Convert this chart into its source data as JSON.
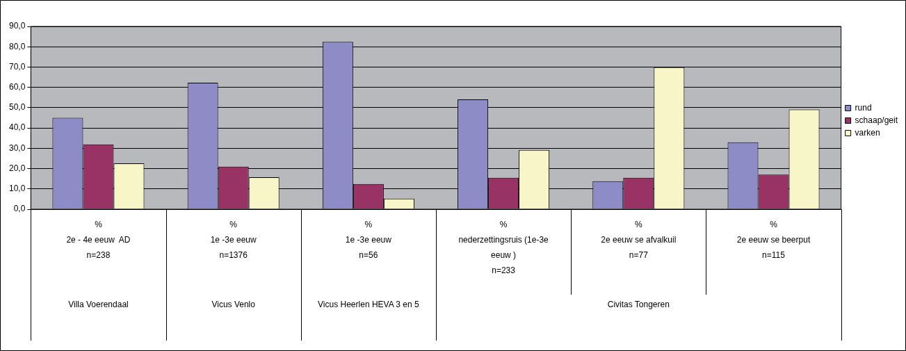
{
  "chart_data": {
    "type": "bar",
    "categories": [
      "%\n2e - 4e eeuw  AD\nn=238",
      "%\n1e -3e eeuw\nn=1376",
      "%\n1e -3e eeuw\nn=56",
      "%\nnederzettingsruis (1e-3e eeuw )\nn=233",
      "%\n2e eeuw se afvalkuil\nn=77",
      "%\n2e eeuw se beerput\nn=115"
    ],
    "series": [
      {
        "name": "rund",
        "color": "#8e8cc6",
        "values": [
          45.0,
          62.3,
          82.4,
          54.1,
          13.8,
          32.9
        ]
      },
      {
        "name": "schaap/geit",
        "color": "#993366",
        "values": [
          31.9,
          21.0,
          12.4,
          15.5,
          15.5,
          17.0
        ]
      },
      {
        "name": "varken",
        "color": "#f8f6c8",
        "values": [
          22.6,
          15.7,
          5.2,
          29.2,
          69.9,
          49.1
        ]
      }
    ],
    "ylim": [
      0,
      90
    ],
    "yticks": [
      {
        "value": 0,
        "label": "0,0"
      },
      {
        "value": 10,
        "label": "10,0"
      },
      {
        "value": 20,
        "label": "20,0"
      },
      {
        "value": 30,
        "label": "30,0"
      },
      {
        "value": 40,
        "label": "40,0"
      },
      {
        "value": 50,
        "label": "50,0"
      },
      {
        "value": 60,
        "label": "60,0"
      },
      {
        "value": 70,
        "label": "70,0"
      },
      {
        "value": 80,
        "label": "80,0"
      },
      {
        "value": 90,
        "label": "90,0"
      }
    ],
    "grid": "y",
    "legend": "right",
    "annotations": [
      "Villa Voerendaal",
      "Vicus Venlo",
      "Vicus Heerlen HEVA 3 en 5",
      "Civitas Tongeren"
    ]
  }
}
